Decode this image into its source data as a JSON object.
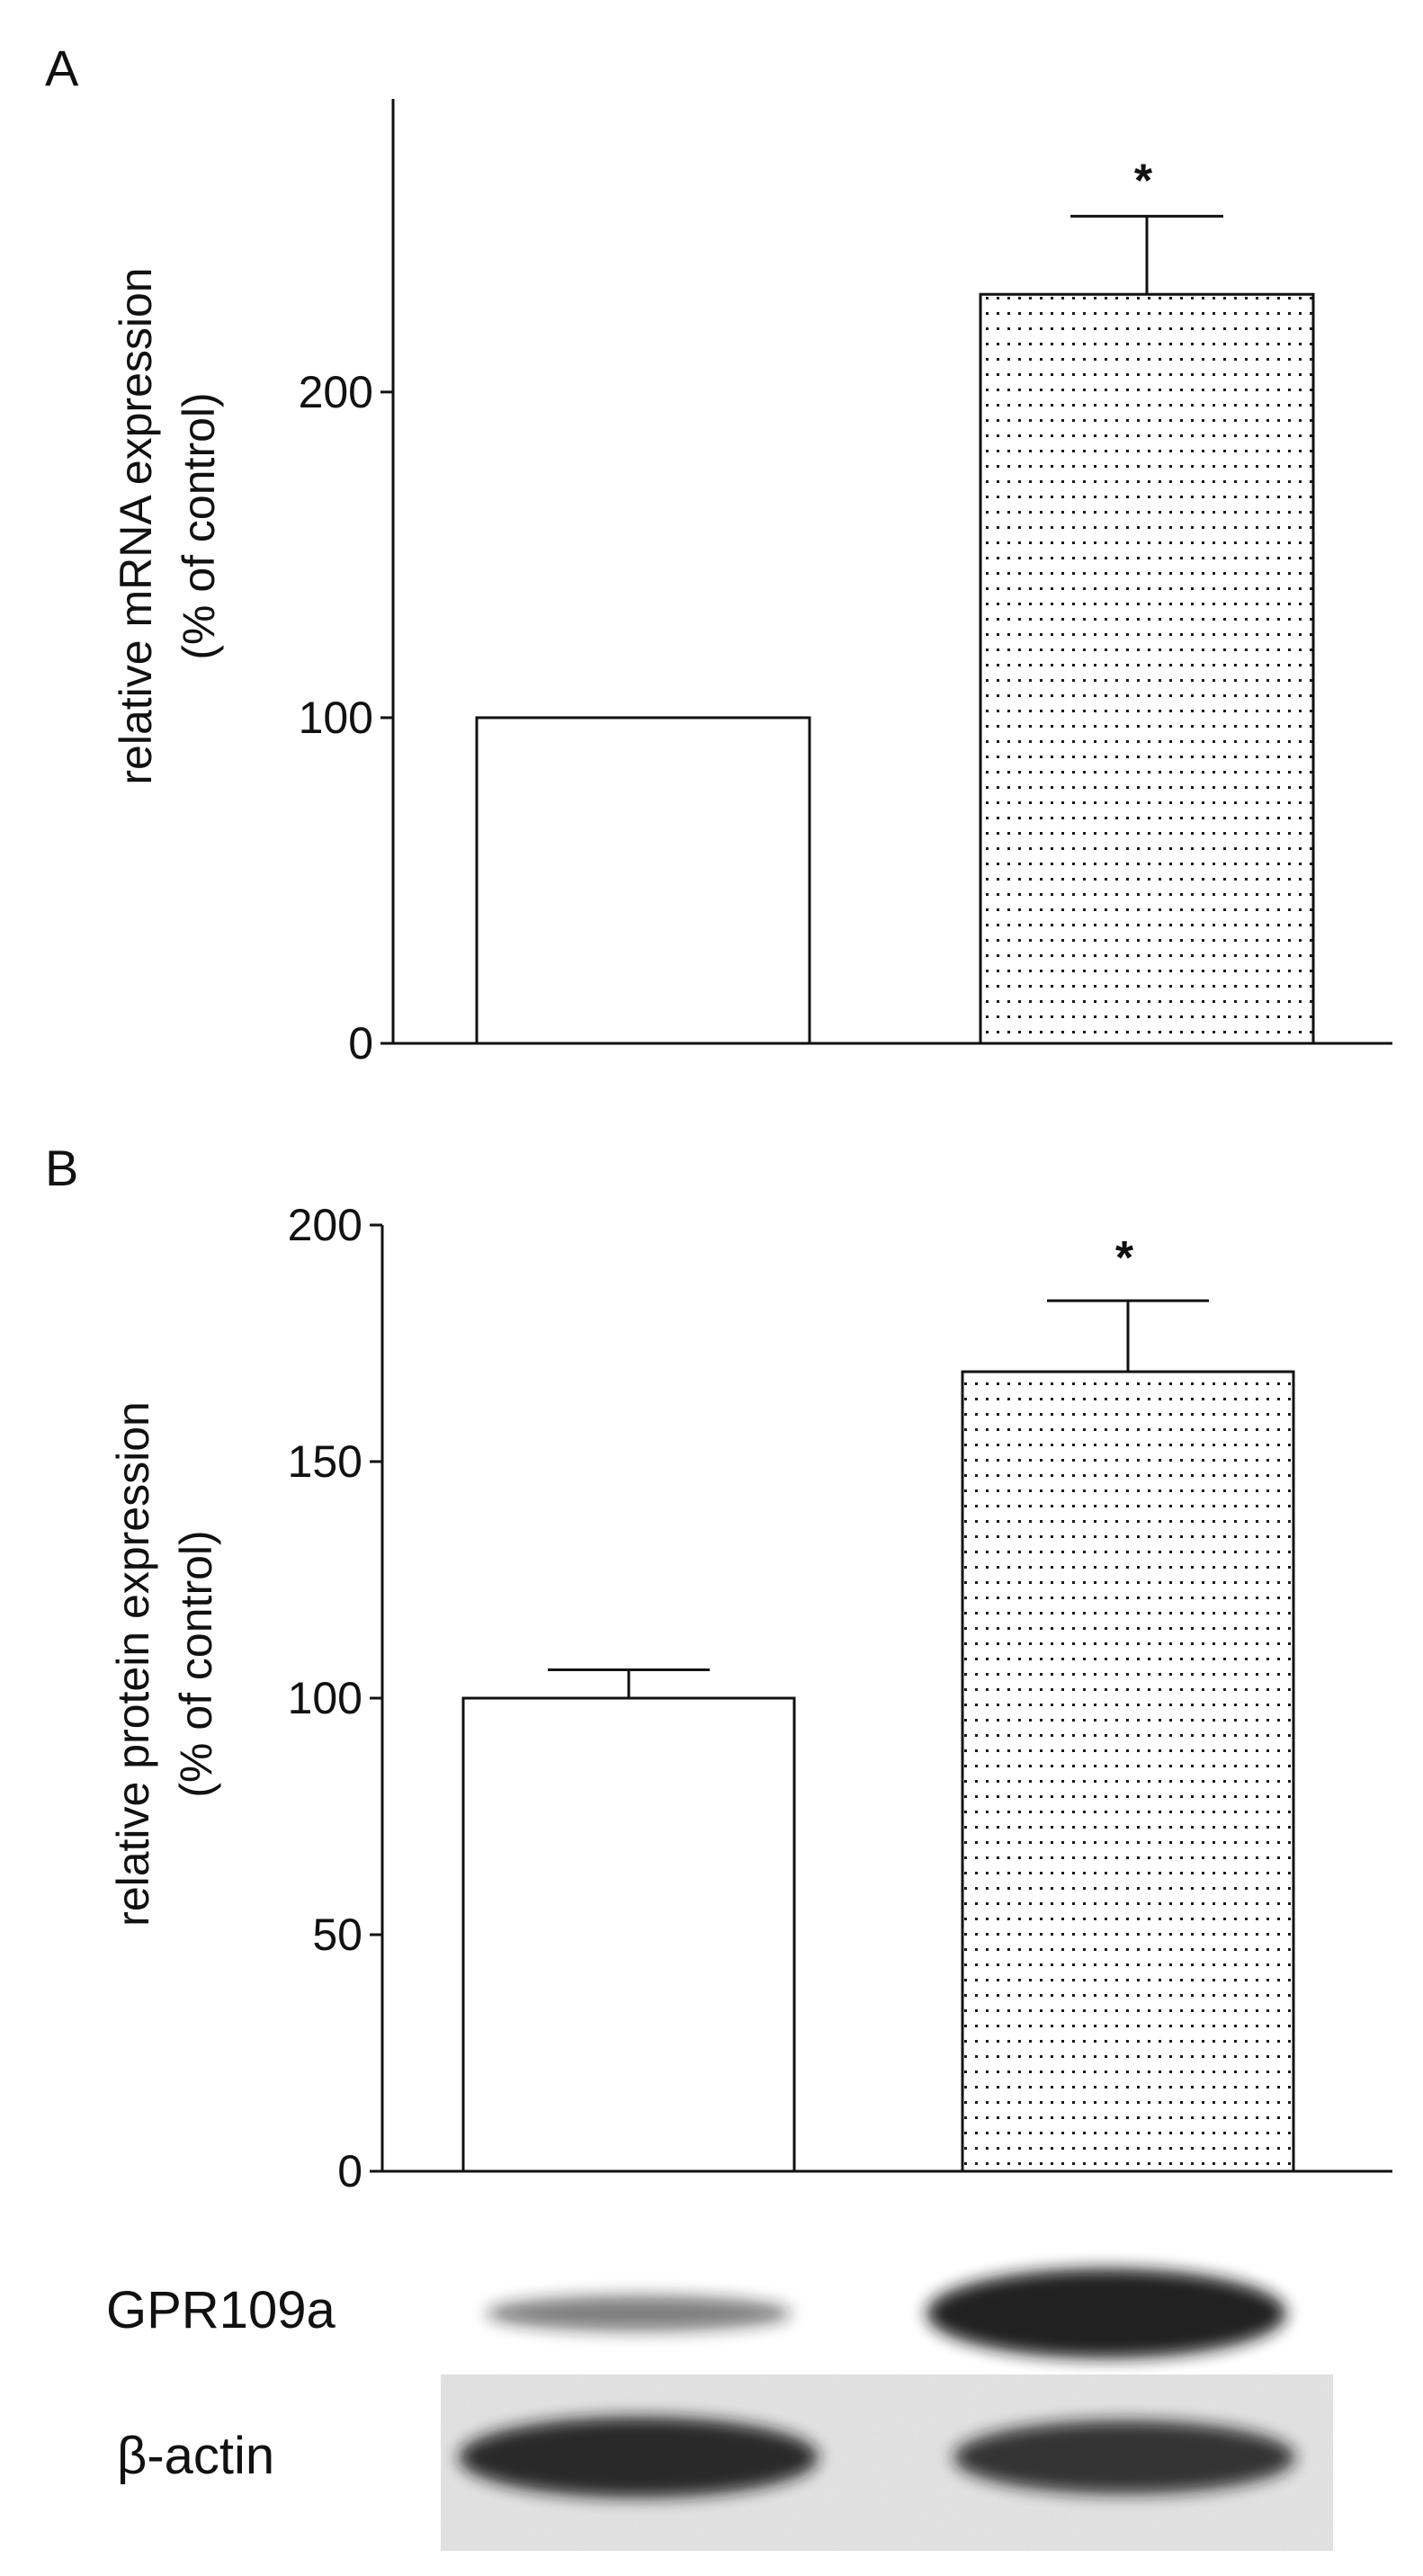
{
  "chart_data": [
    {
      "panel": "A",
      "type": "bar",
      "categories": [
        "",
        ""
      ],
      "values": [
        100,
        230
      ],
      "error": [
        0,
        24
      ],
      "significance": [
        "",
        "*"
      ],
      "fills": [
        "plain",
        "dotted"
      ],
      "title": "",
      "xlabel": "",
      "ylabel": [
        "relative mRNA expression",
        "(% of control)"
      ],
      "ylim": [
        0,
        290
      ],
      "yticks": [
        0,
        100,
        200
      ],
      "ytick_labels": [
        "0",
        "100",
        "200"
      ],
      "grid": false
    },
    {
      "panel": "B",
      "type": "bar",
      "categories": [
        "",
        ""
      ],
      "values": [
        100,
        169
      ],
      "error": [
        6,
        15
      ],
      "significance": [
        "",
        "*"
      ],
      "fills": [
        "plain",
        "dotted"
      ],
      "title": "",
      "xlabel": "",
      "ylabel": [
        "relative protein expression",
        "(% of control)"
      ],
      "ylim": [
        0,
        200
      ],
      "yticks": [
        0,
        50,
        100,
        150,
        200
      ],
      "ytick_labels": [
        "0",
        "50",
        "100",
        "150",
        "200"
      ],
      "grid": false
    }
  ],
  "blot": {
    "rows": [
      {
        "label": "GPR109a",
        "intensity": [
          0.55,
          0.95
        ]
      },
      {
        "label": "β-actin",
        "intensity": [
          0.9,
          0.85
        ]
      }
    ]
  },
  "colors": {
    "ink": "#111111",
    "bar_fill": "#ffffff",
    "blot_background": "#e4e4e4",
    "band": "#141414"
  }
}
